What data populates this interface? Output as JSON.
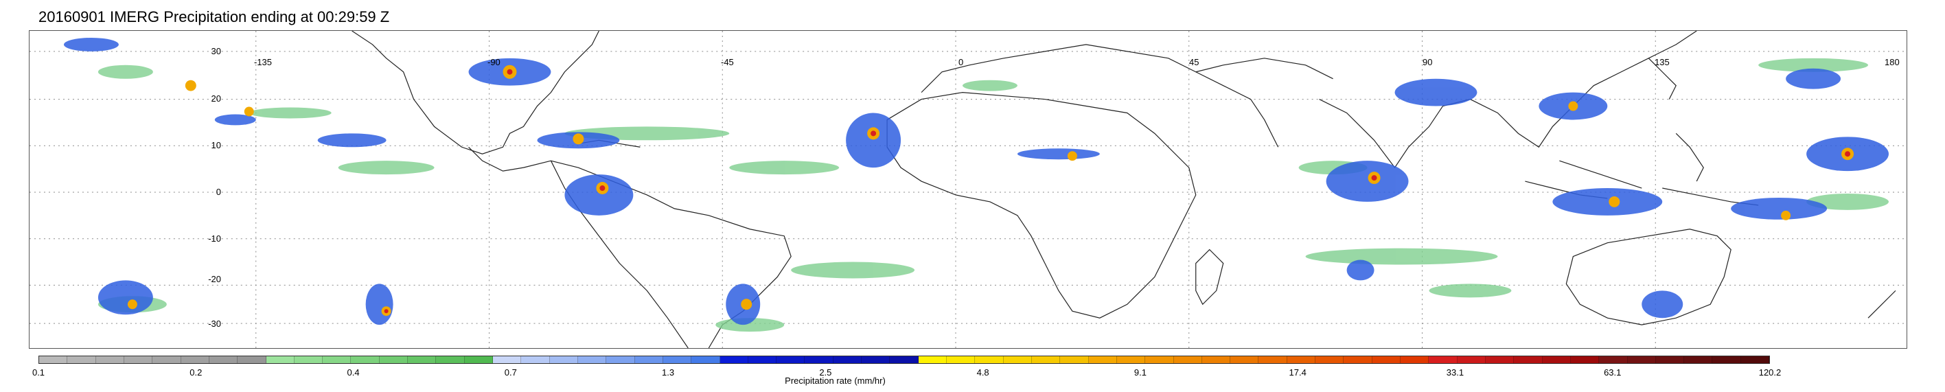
{
  "title": "20160901 IMERG Precipitation ending at 00:29:59 Z",
  "map": {
    "latitude_labels": [
      "30",
      "20",
      "10",
      "0",
      "-10",
      "-20",
      "-30"
    ],
    "longitude_labels": [
      "-135",
      "-90",
      "-45",
      "0",
      "45",
      "90",
      "135",
      "180"
    ],
    "grid": "dotted",
    "projection": "equirectangular"
  },
  "colorbar": {
    "title": "Precipitation rate (mm/hr)",
    "tick_labels": [
      "0.1",
      "0.2",
      "0.4",
      "0.7",
      "1.3",
      "2.5",
      "4.8",
      "9.1",
      "17.4",
      "33.1",
      "63.1",
      "120.2"
    ],
    "segment_colors": [
      "#b9b9b9",
      "#b4b4b4",
      "#afafaf",
      "#aaaaaa",
      "#a5a5a5",
      "#a0a0a0",
      "#9b9b9b",
      "#969696",
      "#9de39d",
      "#92dd92",
      "#87d787",
      "#7cd17c",
      "#71cb71",
      "#66c566",
      "#5bbf5b",
      "#50b950",
      "#c9d6f7",
      "#b6c9f5",
      "#a3bcf3",
      "#90aff1",
      "#7da2ef",
      "#6a95ed",
      "#5788eb",
      "#447be9",
      "#0a1cd8",
      "#0a1ad0",
      "#0a18c8",
      "#0a16c0",
      "#0a14b8",
      "#0a12b0",
      "#0a10a8",
      "#fff200",
      "#fde800",
      "#fbde00",
      "#f9d400",
      "#f7ca00",
      "#f5c000",
      "#f5a800",
      "#f39e00",
      "#f19400",
      "#ef8a00",
      "#ed8000",
      "#eb7600",
      "#ea6a00",
      "#e86000",
      "#e65600",
      "#e44c00",
      "#e24200",
      "#e03800",
      "#d81e1e",
      "#cc1a1a",
      "#c01616",
      "#b41212",
      "#a80e0e",
      "#9c0a0a",
      "#7a1414",
      "#721212",
      "#6a1010",
      "#620e0e",
      "#5a0c0c",
      "#520a0a"
    ]
  }
}
